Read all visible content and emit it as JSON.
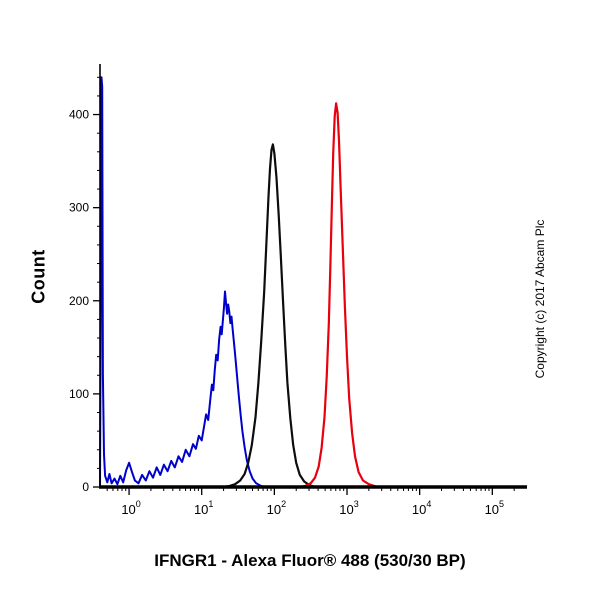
{
  "figure": {
    "ylabel": "Count",
    "xlabel": "IFNGR1 - Alexa Fluor® 488 (530/30 BP)",
    "copyright": "Copyright (c) 2017 Abcam Plc"
  },
  "chart_data": {
    "type": "line",
    "subtype": "flow-cytometry-histogram",
    "title": "IFNGR1 - Alexa Fluor® 488 (530/30 BP)",
    "xlabel": "IFNGR1 - Alexa Fluor® 488 (530/30 BP)",
    "ylabel": "Count",
    "x_scale": "log10",
    "x_axis_log10_range": [
      -0.4,
      5.45
    ],
    "ylim": [
      0,
      450
    ],
    "y_ticks": [
      0,
      100,
      200,
      300,
      400
    ],
    "y_minor_tick_step": 20,
    "x_ticks": [
      {
        "log10": 0,
        "base": "10",
        "exp": "0"
      },
      {
        "log10": 1,
        "base": "10",
        "exp": "1"
      },
      {
        "log10": 2,
        "base": "10",
        "exp": "2"
      },
      {
        "log10": 3,
        "base": "10",
        "exp": "3"
      },
      {
        "log10": 4,
        "base": "10",
        "exp": "4"
      },
      {
        "log10": 5,
        "base": "10",
        "exp": "5"
      }
    ],
    "grid": false,
    "legend": "none",
    "axis_color": "#000000",
    "series": [
      {
        "name": "control-blue",
        "color": "#0000cd",
        "stroke_width": 2,
        "points_log10x_count": [
          [
            -0.4,
            0
          ],
          [
            -0.39,
            180
          ],
          [
            -0.38,
            440
          ],
          [
            -0.37,
            430
          ],
          [
            -0.36,
            120
          ],
          [
            -0.345,
            35
          ],
          [
            -0.33,
            12
          ],
          [
            -0.3,
            5
          ],
          [
            -0.27,
            14
          ],
          [
            -0.24,
            4
          ],
          [
            -0.2,
            9
          ],
          [
            -0.16,
            3
          ],
          [
            -0.12,
            12
          ],
          [
            -0.08,
            5
          ],
          [
            -0.04,
            18
          ],
          [
            0.0,
            26
          ],
          [
            0.04,
            16
          ],
          [
            0.08,
            7
          ],
          [
            0.13,
            4
          ],
          [
            0.18,
            13
          ],
          [
            0.23,
            7
          ],
          [
            0.28,
            17
          ],
          [
            0.33,
            10
          ],
          [
            0.38,
            21
          ],
          [
            0.43,
            13
          ],
          [
            0.48,
            24
          ],
          [
            0.53,
            17
          ],
          [
            0.58,
            28
          ],
          [
            0.63,
            21
          ],
          [
            0.68,
            33
          ],
          [
            0.73,
            27
          ],
          [
            0.78,
            40
          ],
          [
            0.83,
            33
          ],
          [
            0.88,
            46
          ],
          [
            0.92,
            41
          ],
          [
            0.96,
            55
          ],
          [
            1.0,
            50
          ],
          [
            1.03,
            64
          ],
          [
            1.06,
            78
          ],
          [
            1.09,
            72
          ],
          [
            1.12,
            95
          ],
          [
            1.14,
            110
          ],
          [
            1.16,
            104
          ],
          [
            1.18,
            126
          ],
          [
            1.2,
            142
          ],
          [
            1.22,
            136
          ],
          [
            1.24,
            158
          ],
          [
            1.26,
            172
          ],
          [
            1.275,
            164
          ],
          [
            1.29,
            178
          ],
          [
            1.305,
            192
          ],
          [
            1.32,
            210
          ],
          [
            1.335,
            198
          ],
          [
            1.35,
            186
          ],
          [
            1.365,
            196
          ],
          [
            1.38,
            188
          ],
          [
            1.395,
            176
          ],
          [
            1.41,
            183
          ],
          [
            1.425,
            170
          ],
          [
            1.44,
            158
          ],
          [
            1.455,
            146
          ],
          [
            1.47,
            133
          ],
          [
            1.49,
            116
          ],
          [
            1.51,
            98
          ],
          [
            1.535,
            78
          ],
          [
            1.56,
            60
          ],
          [
            1.59,
            43
          ],
          [
            1.62,
            29
          ],
          [
            1.66,
            17
          ],
          [
            1.7,
            9
          ],
          [
            1.75,
            4
          ],
          [
            1.82,
            1
          ],
          [
            1.9,
            0
          ]
        ]
      },
      {
        "name": "control-black",
        "color": "#0d0d0d",
        "stroke_width": 2.2,
        "points_log10x_count": [
          [
            1.28,
            0
          ],
          [
            1.38,
            1
          ],
          [
            1.46,
            3
          ],
          [
            1.53,
            7
          ],
          [
            1.59,
            14
          ],
          [
            1.64,
            26
          ],
          [
            1.69,
            45
          ],
          [
            1.74,
            75
          ],
          [
            1.78,
            112
          ],
          [
            1.82,
            158
          ],
          [
            1.86,
            210
          ],
          [
            1.89,
            262
          ],
          [
            1.92,
            312
          ],
          [
            1.94,
            342
          ],
          [
            1.96,
            362
          ],
          [
            1.98,
            368
          ],
          [
            2.0,
            358
          ],
          [
            2.03,
            332
          ],
          [
            2.06,
            292
          ],
          [
            2.09,
            246
          ],
          [
            2.12,
            198
          ],
          [
            2.15,
            152
          ],
          [
            2.18,
            112
          ],
          [
            2.22,
            74
          ],
          [
            2.26,
            45
          ],
          [
            2.3,
            26
          ],
          [
            2.35,
            13
          ],
          [
            2.41,
            6
          ],
          [
            2.48,
            2
          ],
          [
            2.56,
            0
          ]
        ]
      },
      {
        "name": "ifngr1-red",
        "color": "#e8000d",
        "stroke_width": 2.2,
        "points_log10x_count": [
          [
            2.32,
            0
          ],
          [
            2.42,
            1
          ],
          [
            2.5,
            4
          ],
          [
            2.56,
            10
          ],
          [
            2.61,
            22
          ],
          [
            2.65,
            42
          ],
          [
            2.69,
            75
          ],
          [
            2.72,
            118
          ],
          [
            2.75,
            175
          ],
          [
            2.77,
            235
          ],
          [
            2.79,
            300
          ],
          [
            2.81,
            358
          ],
          [
            2.83,
            398
          ],
          [
            2.85,
            412
          ],
          [
            2.87,
            402
          ],
          [
            2.89,
            372
          ],
          [
            2.91,
            325
          ],
          [
            2.94,
            262
          ],
          [
            2.97,
            196
          ],
          [
            3.0,
            140
          ],
          [
            3.03,
            95
          ],
          [
            3.07,
            58
          ],
          [
            3.11,
            33
          ],
          [
            3.16,
            16
          ],
          [
            3.22,
            7
          ],
          [
            3.3,
            3
          ],
          [
            3.42,
            0
          ]
        ]
      }
    ]
  }
}
